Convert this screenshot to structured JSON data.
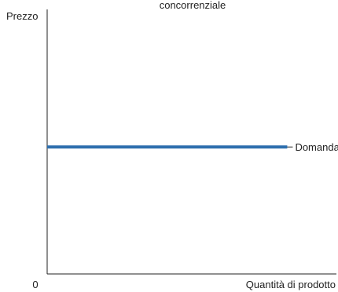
{
  "chart_data": {
    "type": "line",
    "title": "concorrenziale",
    "ylabel": "Prezzo",
    "xlabel": "Quantità di prodotto",
    "origin_label": "0",
    "series": [
      {
        "name": "Domanda",
        "color": "#2e6fae",
        "x": [
          0,
          0.83
        ],
        "y": [
          0.48,
          0.48
        ]
      }
    ],
    "xlim": [
      0,
      1
    ],
    "ylim": [
      0,
      1
    ],
    "grid": false,
    "legend": "none"
  }
}
